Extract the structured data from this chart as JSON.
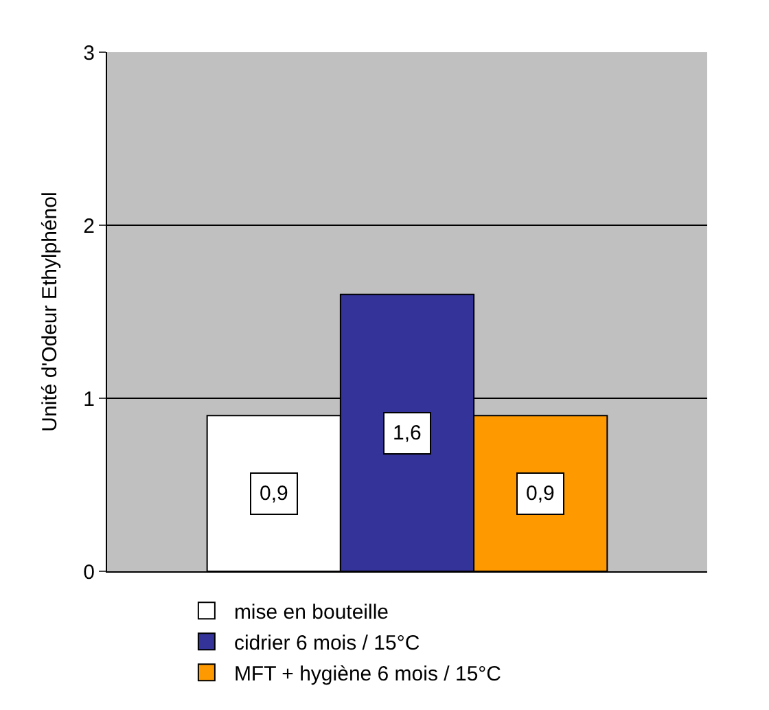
{
  "chart_data": {
    "type": "bar",
    "ylabel": "Unité d'Odeur Ethylphénol",
    "categories": [
      null
    ],
    "series": [
      {
        "name": "mise en bouteille",
        "color": "#ffffff",
        "values": [
          0.9
        ],
        "value_labels": [
          "0,9"
        ]
      },
      {
        "name": "cidrier 6 mois / 15°C",
        "color": "#333399",
        "values": [
          1.6
        ],
        "value_labels": [
          "1,6"
        ]
      },
      {
        "name": "MFT + hygiène 6 mois / 15°C",
        "color": "#ff9900",
        "values": [
          0.9
        ],
        "value_labels": [
          "0,9"
        ]
      }
    ],
    "ylim": [
      0,
      3
    ],
    "yticks": [
      0,
      1,
      2,
      3
    ],
    "grid": "y",
    "legend": "bottom"
  }
}
